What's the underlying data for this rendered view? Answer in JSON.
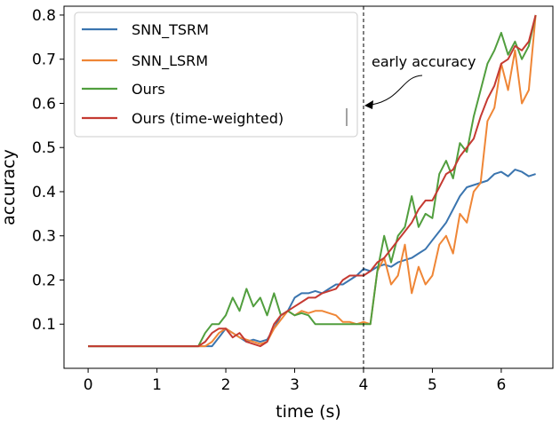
{
  "colors": {
    "snn_tsrm": "#3b75af",
    "snn_lsrm": "#ef8636",
    "ours": "#519e3e",
    "ours_tw": "#c53a32"
  },
  "chart_data": {
    "type": "line",
    "xlabel": "time (s)",
    "ylabel": "accuracy",
    "xlim": [
      -0.35,
      6.75
    ],
    "ylim": [
      0.0,
      0.82
    ],
    "xticks": [
      0,
      1,
      2,
      3,
      4,
      5,
      6
    ],
    "xtick_labels": [
      "0",
      "1",
      "2",
      "3",
      "4",
      "5",
      "6"
    ],
    "yticks": [
      0.1,
      0.2,
      0.3,
      0.4,
      0.5,
      0.6,
      0.7,
      0.8
    ],
    "ytick_labels": [
      "0.1",
      "0.2",
      "0.3",
      "0.4",
      "0.5",
      "0.6",
      "0.7",
      "0.8"
    ],
    "grid": false,
    "legend_placement": "top-left",
    "vline": {
      "x": 4.0,
      "style": "dashed"
    },
    "annotation": {
      "text": "early accuracy",
      "points_to": [
        4.05,
        0.61
      ],
      "text_at": [
        4.12,
        0.66
      ]
    },
    "series": [
      {
        "name": "SNN_TSRM",
        "color_key": "snn_tsrm",
        "points": [
          [
            0,
            0.05
          ],
          [
            1.5,
            0.05
          ],
          [
            1.8,
            0.05
          ],
          [
            1.9,
            0.07
          ],
          [
            2.0,
            0.09
          ],
          [
            2.1,
            0.08
          ],
          [
            2.2,
            0.07
          ],
          [
            2.3,
            0.06
          ],
          [
            2.4,
            0.065
          ],
          [
            2.5,
            0.06
          ],
          [
            2.6,
            0.065
          ],
          [
            2.7,
            0.09
          ],
          [
            2.8,
            0.12
          ],
          [
            2.9,
            0.13
          ],
          [
            3.0,
            0.16
          ],
          [
            3.1,
            0.17
          ],
          [
            3.2,
            0.17
          ],
          [
            3.3,
            0.175
          ],
          [
            3.4,
            0.17
          ],
          [
            3.5,
            0.18
          ],
          [
            3.6,
            0.19
          ],
          [
            3.7,
            0.19
          ],
          [
            3.8,
            0.2
          ],
          [
            3.9,
            0.21
          ],
          [
            4.0,
            0.225
          ],
          [
            4.1,
            0.22
          ],
          [
            4.2,
            0.23
          ],
          [
            4.3,
            0.235
          ],
          [
            4.4,
            0.23
          ],
          [
            4.5,
            0.24
          ],
          [
            4.6,
            0.245
          ],
          [
            4.7,
            0.25
          ],
          [
            4.8,
            0.26
          ],
          [
            4.9,
            0.27
          ],
          [
            5.0,
            0.29
          ],
          [
            5.1,
            0.31
          ],
          [
            5.2,
            0.33
          ],
          [
            5.3,
            0.36
          ],
          [
            5.4,
            0.39
          ],
          [
            5.5,
            0.41
          ],
          [
            5.6,
            0.415
          ],
          [
            5.7,
            0.42
          ],
          [
            5.8,
            0.425
          ],
          [
            5.9,
            0.44
          ],
          [
            6.0,
            0.445
          ],
          [
            6.1,
            0.435
          ],
          [
            6.2,
            0.45
          ],
          [
            6.3,
            0.445
          ],
          [
            6.4,
            0.435
          ],
          [
            6.5,
            0.44
          ]
        ]
      },
      {
        "name": "SNN_LSRM",
        "color_key": "snn_lsrm",
        "points": [
          [
            0,
            0.05
          ],
          [
            1.7,
            0.05
          ],
          [
            1.8,
            0.06
          ],
          [
            1.9,
            0.08
          ],
          [
            2.0,
            0.09
          ],
          [
            2.1,
            0.08
          ],
          [
            2.2,
            0.07
          ],
          [
            2.3,
            0.065
          ],
          [
            2.4,
            0.06
          ],
          [
            2.5,
            0.055
          ],
          [
            2.6,
            0.06
          ],
          [
            2.7,
            0.09
          ],
          [
            2.8,
            0.11
          ],
          [
            2.9,
            0.13
          ],
          [
            3.0,
            0.12
          ],
          [
            3.1,
            0.13
          ],
          [
            3.2,
            0.125
          ],
          [
            3.3,
            0.13
          ],
          [
            3.4,
            0.13
          ],
          [
            3.5,
            0.125
          ],
          [
            3.6,
            0.12
          ],
          [
            3.7,
            0.105
          ],
          [
            3.8,
            0.105
          ],
          [
            3.9,
            0.1
          ],
          [
            4.0,
            0.105
          ],
          [
            4.1,
            0.1
          ],
          [
            4.2,
            0.22
          ],
          [
            4.3,
            0.25
          ],
          [
            4.4,
            0.19
          ],
          [
            4.5,
            0.21
          ],
          [
            4.6,
            0.28
          ],
          [
            4.7,
            0.17
          ],
          [
            4.8,
            0.23
          ],
          [
            4.9,
            0.19
          ],
          [
            5.0,
            0.21
          ],
          [
            5.1,
            0.28
          ],
          [
            5.2,
            0.3
          ],
          [
            5.3,
            0.26
          ],
          [
            5.4,
            0.35
          ],
          [
            5.5,
            0.33
          ],
          [
            5.6,
            0.4
          ],
          [
            5.7,
            0.42
          ],
          [
            5.8,
            0.56
          ],
          [
            5.9,
            0.59
          ],
          [
            6.0,
            0.69
          ],
          [
            6.1,
            0.63
          ],
          [
            6.2,
            0.72
          ],
          [
            6.3,
            0.6
          ],
          [
            6.4,
            0.63
          ],
          [
            6.5,
            0.8
          ]
        ]
      },
      {
        "name": "Ours",
        "color_key": "ours",
        "points": [
          [
            0,
            0.05
          ],
          [
            1.6,
            0.05
          ],
          [
            1.7,
            0.08
          ],
          [
            1.8,
            0.1
          ],
          [
            1.9,
            0.1
          ],
          [
            2.0,
            0.12
          ],
          [
            2.1,
            0.16
          ],
          [
            2.2,
            0.13
          ],
          [
            2.3,
            0.18
          ],
          [
            2.4,
            0.14
          ],
          [
            2.5,
            0.16
          ],
          [
            2.6,
            0.12
          ],
          [
            2.7,
            0.17
          ],
          [
            2.8,
            0.12
          ],
          [
            2.9,
            0.13
          ],
          [
            3.0,
            0.12
          ],
          [
            3.1,
            0.125
          ],
          [
            3.2,
            0.12
          ],
          [
            3.3,
            0.1
          ],
          [
            3.4,
            0.1
          ],
          [
            3.5,
            0.1
          ],
          [
            3.6,
            0.1
          ],
          [
            3.7,
            0.1
          ],
          [
            3.8,
            0.1
          ],
          [
            3.9,
            0.1
          ],
          [
            4.0,
            0.1
          ],
          [
            4.1,
            0.1
          ],
          [
            4.2,
            0.22
          ],
          [
            4.3,
            0.3
          ],
          [
            4.4,
            0.24
          ],
          [
            4.5,
            0.3
          ],
          [
            4.6,
            0.32
          ],
          [
            4.7,
            0.39
          ],
          [
            4.8,
            0.32
          ],
          [
            4.9,
            0.35
          ],
          [
            5.0,
            0.34
          ],
          [
            5.1,
            0.44
          ],
          [
            5.2,
            0.47
          ],
          [
            5.3,
            0.43
          ],
          [
            5.4,
            0.51
          ],
          [
            5.5,
            0.49
          ],
          [
            5.6,
            0.57
          ],
          [
            5.7,
            0.63
          ],
          [
            5.8,
            0.69
          ],
          [
            5.9,
            0.72
          ],
          [
            6.0,
            0.76
          ],
          [
            6.1,
            0.71
          ],
          [
            6.2,
            0.74
          ],
          [
            6.3,
            0.7
          ],
          [
            6.4,
            0.73
          ],
          [
            6.5,
            0.8
          ]
        ]
      },
      {
        "name": "Ours (time-weighted)",
        "color_key": "ours_tw",
        "points": [
          [
            0,
            0.05
          ],
          [
            1.6,
            0.05
          ],
          [
            1.7,
            0.06
          ],
          [
            1.8,
            0.08
          ],
          [
            1.9,
            0.09
          ],
          [
            2.0,
            0.09
          ],
          [
            2.1,
            0.07
          ],
          [
            2.2,
            0.08
          ],
          [
            2.3,
            0.06
          ],
          [
            2.4,
            0.055
          ],
          [
            2.5,
            0.05
          ],
          [
            2.6,
            0.06
          ],
          [
            2.7,
            0.1
          ],
          [
            2.8,
            0.12
          ],
          [
            2.9,
            0.13
          ],
          [
            3.0,
            0.14
          ],
          [
            3.1,
            0.15
          ],
          [
            3.2,
            0.16
          ],
          [
            3.3,
            0.16
          ],
          [
            3.4,
            0.17
          ],
          [
            3.5,
            0.175
          ],
          [
            3.6,
            0.18
          ],
          [
            3.7,
            0.2
          ],
          [
            3.8,
            0.21
          ],
          [
            3.9,
            0.21
          ],
          [
            4.0,
            0.21
          ],
          [
            4.1,
            0.22
          ],
          [
            4.2,
            0.24
          ],
          [
            4.3,
            0.25
          ],
          [
            4.4,
            0.27
          ],
          [
            4.5,
            0.29
          ],
          [
            4.6,
            0.31
          ],
          [
            4.7,
            0.33
          ],
          [
            4.8,
            0.36
          ],
          [
            4.9,
            0.38
          ],
          [
            5.0,
            0.38
          ],
          [
            5.1,
            0.41
          ],
          [
            5.2,
            0.44
          ],
          [
            5.3,
            0.45
          ],
          [
            5.4,
            0.48
          ],
          [
            5.5,
            0.5
          ],
          [
            5.6,
            0.52
          ],
          [
            5.7,
            0.57
          ],
          [
            5.8,
            0.61
          ],
          [
            5.9,
            0.64
          ],
          [
            6.0,
            0.69
          ],
          [
            6.1,
            0.7
          ],
          [
            6.2,
            0.73
          ],
          [
            6.3,
            0.72
          ],
          [
            6.4,
            0.74
          ],
          [
            6.5,
            0.8
          ]
        ]
      }
    ]
  }
}
